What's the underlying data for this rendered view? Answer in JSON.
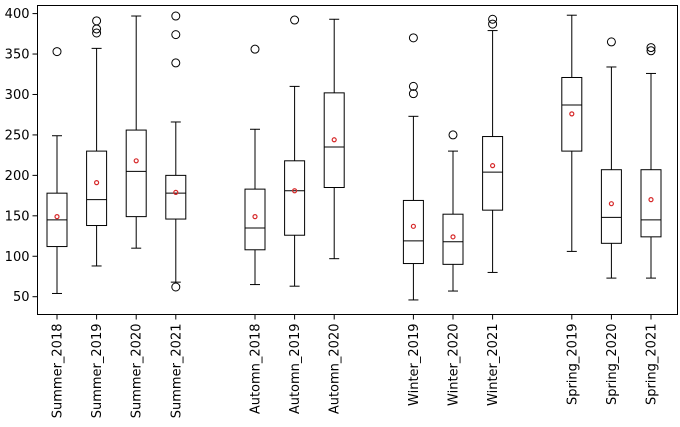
{
  "chart_data": {
    "type": "box",
    "title": "",
    "xlabel": "",
    "ylabel": "",
    "ylim": [
      28,
      410
    ],
    "yticks": [
      50,
      100,
      150,
      200,
      250,
      300,
      350,
      400
    ],
    "grid": false,
    "legend": "none",
    "colors": {
      "box": "#000000",
      "median": "#000000",
      "mean": "#d62728",
      "flier": "#000000"
    },
    "categories": [
      "Summer_2018",
      "Summer_2019",
      "Summer_2020",
      "Summer_2021",
      "Automn_2018",
      "Automn_2019",
      "Automn_2020",
      "Winter_2019",
      "Winter_2020",
      "Winter_2021",
      "Spring_2019",
      "Spring_2020",
      "Spring_2021"
    ],
    "boxes": [
      {
        "label": "Summer_2018",
        "whislo": 54,
        "q1": 112,
        "median": 145,
        "q3": 178,
        "whishi": 249,
        "mean": 149,
        "fliers": [
          353
        ]
      },
      {
        "label": "Summer_2019",
        "whislo": 88,
        "q1": 138,
        "median": 170,
        "q3": 230,
        "whishi": 357,
        "mean": 191,
        "fliers": [
          376,
          381,
          391
        ]
      },
      {
        "label": "Summer_2020",
        "whislo": 110,
        "q1": 149,
        "median": 205,
        "q3": 256,
        "whishi": 397,
        "mean": 218,
        "fliers": []
      },
      {
        "label": "Summer_2021",
        "whislo": 68,
        "q1": 146,
        "median": 178,
        "q3": 200,
        "whishi": 266,
        "mean": 179,
        "fliers": [
          62,
          339,
          374,
          397
        ]
      },
      {
        "label": "Automn_2018",
        "whislo": 65,
        "q1": 108,
        "median": 135,
        "q3": 183,
        "whishi": 257,
        "mean": 149,
        "fliers": [
          356
        ]
      },
      {
        "label": "Automn_2019",
        "whislo": 63,
        "q1": 126,
        "median": 181,
        "q3": 218,
        "whishi": 310,
        "mean": 181,
        "fliers": [
          392
        ]
      },
      {
        "label": "Automn_2020",
        "whislo": 97,
        "q1": 185,
        "median": 235,
        "q3": 302,
        "whishi": 393,
        "mean": 244,
        "fliers": []
      },
      {
        "label": "Winter_2019",
        "whislo": 46,
        "q1": 91,
        "median": 119,
        "q3": 169,
        "whishi": 273,
        "mean": 137,
        "fliers": [
          301,
          310,
          370
        ]
      },
      {
        "label": "Winter_2020",
        "whislo": 57,
        "q1": 90,
        "median": 118,
        "q3": 152,
        "whishi": 230,
        "mean": 124,
        "fliers": [
          250
        ]
      },
      {
        "label": "Winter_2021",
        "whislo": 80,
        "q1": 157,
        "median": 204,
        "q3": 248,
        "whishi": 379,
        "mean": 212,
        "fliers": [
          387,
          393
        ]
      },
      {
        "label": "Spring_2019",
        "whislo": 106,
        "q1": 230,
        "median": 287,
        "q3": 321,
        "whishi": 398,
        "mean": 276,
        "fliers": []
      },
      {
        "label": "Spring_2020",
        "whislo": 73,
        "q1": 116,
        "median": 148,
        "q3": 207,
        "whishi": 334,
        "mean": 165,
        "fliers": [
          365
        ]
      },
      {
        "label": "Spring_2021",
        "whislo": 73,
        "q1": 124,
        "median": 145,
        "q3": 207,
        "whishi": 326,
        "mean": 170,
        "fliers": [
          354,
          358
        ]
      }
    ]
  }
}
